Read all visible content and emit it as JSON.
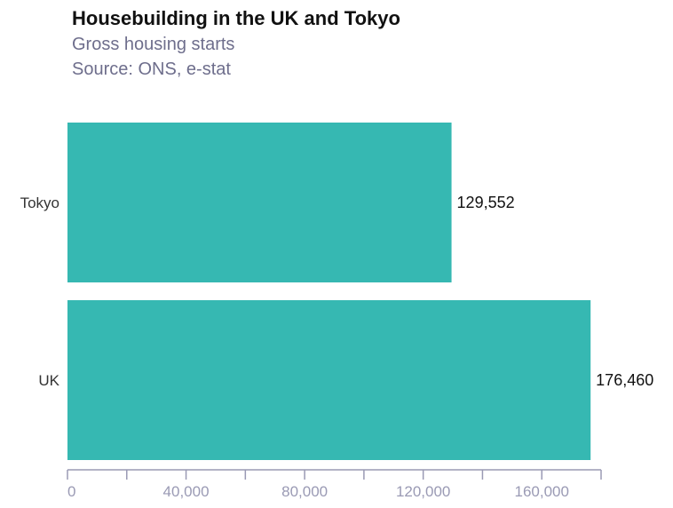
{
  "chart_data": {
    "type": "bar",
    "orientation": "horizontal",
    "title": "Housebuilding in the UK and Tokyo",
    "subtitle": "Gross housing starts",
    "source": "Source: ONS, e-stat",
    "categories": [
      "Tokyo",
      "UK"
    ],
    "values": [
      129552,
      176460
    ],
    "value_labels": [
      "129,552",
      "176,460"
    ],
    "xlim": [
      0,
      180000
    ],
    "xticks": [
      0,
      20000,
      40000,
      60000,
      80000,
      100000,
      120000,
      140000,
      160000,
      180000
    ],
    "xtick_labels": [
      "0",
      "40,000",
      "80,000",
      "120,000",
      "160,000"
    ],
    "xtick_label_values": [
      0,
      40000,
      80000,
      120000,
      160000
    ],
    "xlabel": "",
    "ylabel": "",
    "grid": false,
    "legend": "none",
    "colors": {
      "bar": "#36b8b2",
      "axis": "#9a9ab4"
    }
  }
}
